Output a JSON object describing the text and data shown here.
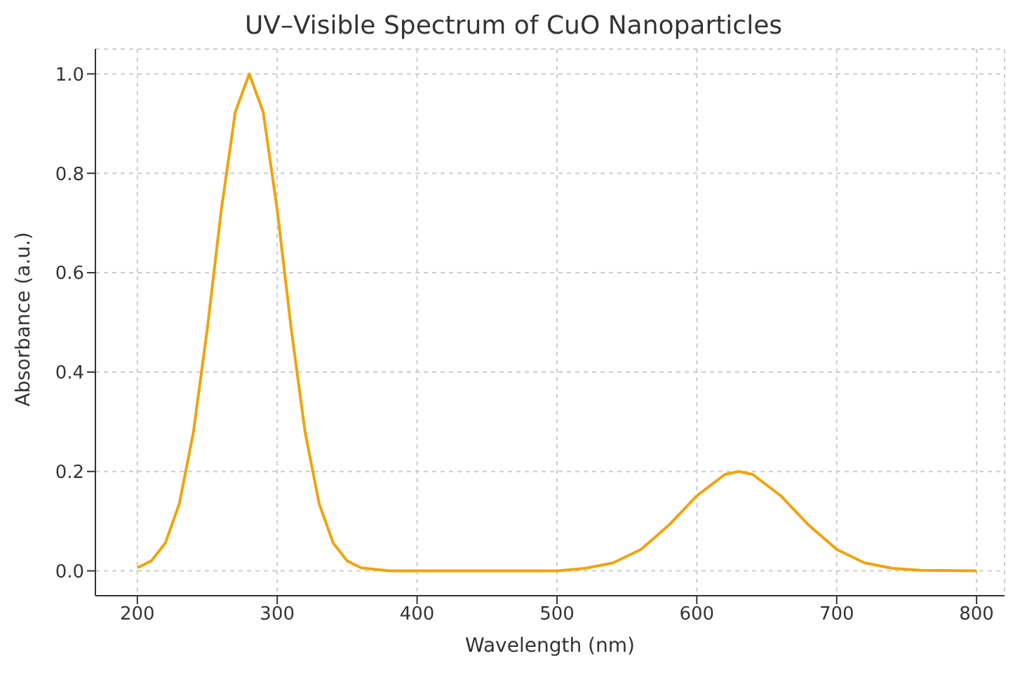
{
  "chart_data": {
    "type": "line",
    "title": "UV–Visible Spectrum of CuO Nanoparticles",
    "xlabel": "Wavelength (nm)",
    "ylabel": "Absorbance (a.u.)",
    "x": [
      200,
      210,
      220,
      230,
      240,
      250,
      260,
      270,
      280,
      290,
      300,
      310,
      320,
      330,
      340,
      350,
      360,
      380,
      400,
      450,
      500,
      520,
      540,
      560,
      580,
      600,
      620,
      630,
      640,
      660,
      680,
      700,
      720,
      740,
      760,
      800
    ],
    "series": [
      {
        "color": "#f0a30a",
        "values": [
          0.006,
          0.02,
          0.056,
          0.135,
          0.278,
          0.487,
          0.726,
          0.923,
          1.0,
          0.923,
          0.726,
          0.487,
          0.278,
          0.135,
          0.056,
          0.02,
          0.006,
          0,
          0,
          0,
          0,
          0.005,
          0.016,
          0.043,
          0.092,
          0.151,
          0.194,
          0.2,
          0.194,
          0.151,
          0.092,
          0.043,
          0.016,
          0.005,
          0.001,
          0
        ]
      }
    ],
    "xlim": [
      170,
      820
    ],
    "xticks": [
      200,
      300,
      400,
      500,
      600,
      700,
      800
    ],
    "ylim": [
      -0.05,
      1.05
    ],
    "yticks": [
      {
        "value": 0,
        "label": "0.0"
      },
      {
        "value": 0.2,
        "label": "0.2"
      },
      {
        "value": 0.4,
        "label": "0.4"
      },
      {
        "value": 0.6,
        "label": "0.6"
      },
      {
        "value": 0.8,
        "label": "0.8"
      },
      {
        "value": 1,
        "label": "1.0"
      }
    ],
    "grid": true,
    "marker": "none",
    "line_style": "solid",
    "legend": false
  }
}
